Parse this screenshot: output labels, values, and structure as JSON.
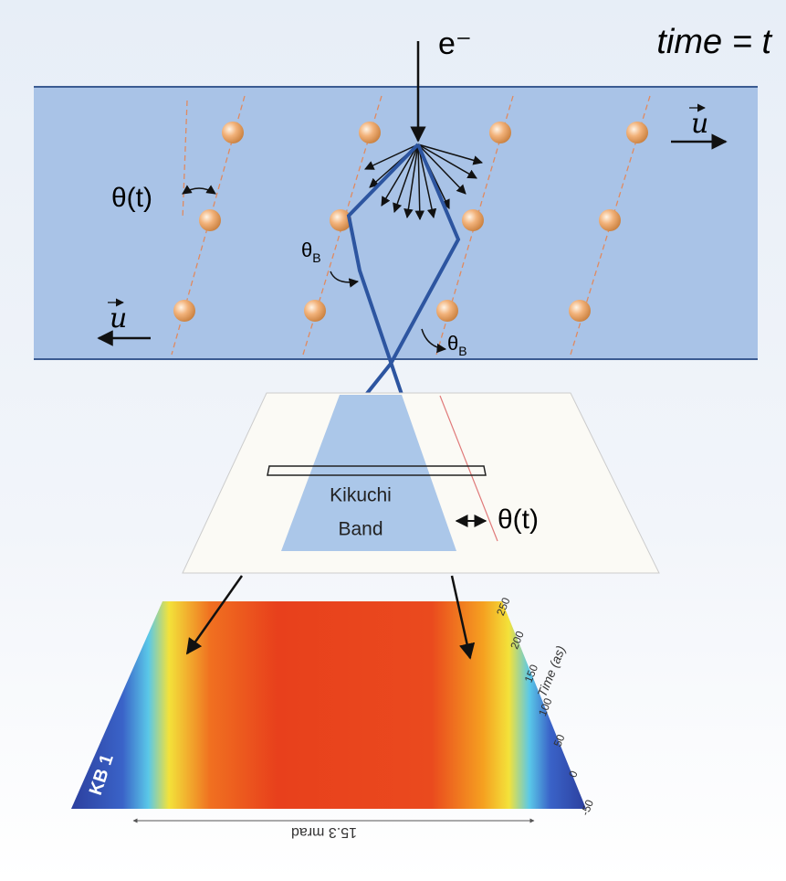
{
  "electron_label": "e⁻",
  "time_label": "time = t",
  "crystal": {
    "velocity_top": "u",
    "velocity_bottom": "u",
    "tilt_angle": "θ(t)",
    "bragg_angle_left": {
      "symbol": "θ",
      "subscript": "B"
    },
    "bragg_angle_right": {
      "symbol": "θ",
      "subscript": "B"
    }
  },
  "screen": {
    "band_line1": "Kikuchi",
    "band_line2": "Band",
    "band_angle": "θ(t)"
  },
  "heatmap": {
    "band_label": "KB 1",
    "time_axis_label": "Time (as)",
    "time_ticks": [
      250,
      200,
      150,
      100,
      50,
      0,
      -50
    ],
    "width_label": "15.3 mrad"
  }
}
